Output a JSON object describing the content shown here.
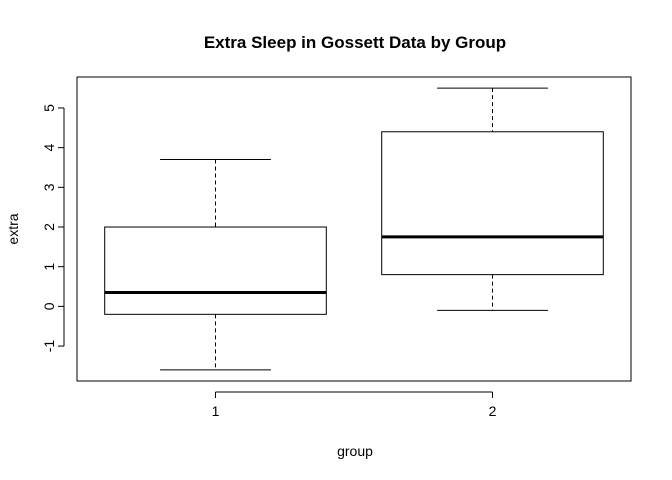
{
  "chart_data": {
    "type": "boxplot",
    "title": "Extra Sleep in Gossett Data by Group",
    "xlabel": "group",
    "ylabel": "extra",
    "categories": [
      "1",
      "2"
    ],
    "boxes": [
      {
        "category": "1",
        "min": -1.6,
        "q1": -0.2,
        "median": 0.35,
        "q3": 2.0,
        "max": 3.7
      },
      {
        "category": "2",
        "min": -0.1,
        "q1": 0.8,
        "median": 1.75,
        "q3": 4.4,
        "max": 5.5
      }
    ],
    "ylim": [
      -1.88,
      5.78
    ],
    "yticks": [
      -1,
      0,
      1,
      2,
      3,
      4,
      5
    ],
    "grid": false,
    "legend": "none"
  }
}
